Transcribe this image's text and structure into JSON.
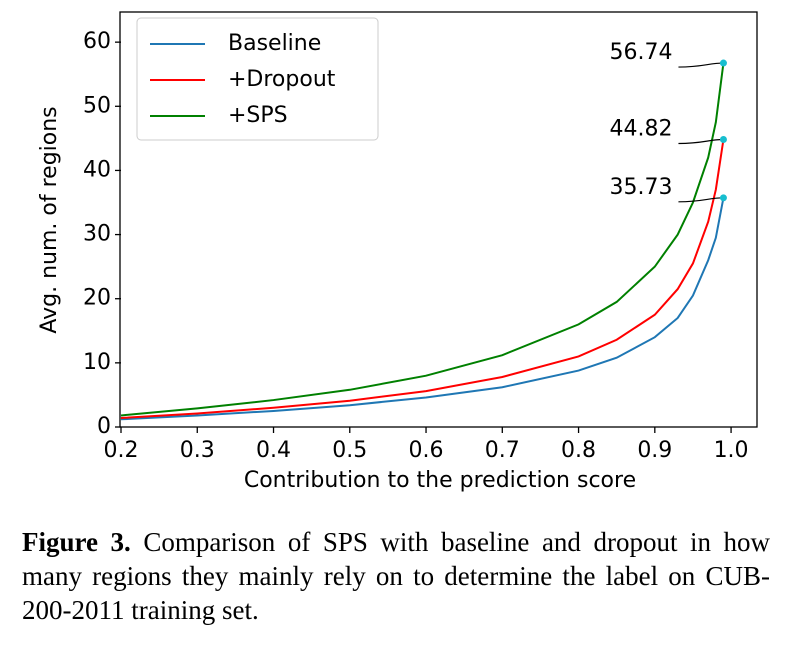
{
  "chart_data": {
    "type": "line",
    "xlabel": "Contribution to the prediction score",
    "ylabel": "Avg. num. of regions",
    "x": [
      0.2,
      0.3,
      0.4,
      0.5,
      0.6,
      0.7,
      0.8,
      0.85,
      0.9,
      0.93,
      0.95,
      0.97,
      0.98,
      0.99
    ],
    "series": [
      {
        "name": "Baseline",
        "color": "#1f77b4",
        "values": [
          1.2,
          1.8,
          2.5,
          3.4,
          4.6,
          6.2,
          8.8,
          10.8,
          14,
          17,
          20.5,
          26,
          29.5,
          35.73
        ]
      },
      {
        "name": "+Dropout",
        "color": "#ff0000",
        "values": [
          1.4,
          2.1,
          3.0,
          4.1,
          5.6,
          7.8,
          11,
          13.6,
          17.5,
          21.5,
          25.5,
          32,
          37,
          44.82
        ]
      },
      {
        "name": "+SPS",
        "color": "#008000",
        "values": [
          1.8,
          2.9,
          4.2,
          5.8,
          8.0,
          11.2,
          16,
          19.5,
          25,
          30,
          35,
          42,
          47.5,
          56.74
        ]
      }
    ],
    "endpoint_color": "#17becf",
    "xlim": [
      0.2,
      1.034
    ],
    "ylim": [
      0,
      64.7
    ],
    "xticks": [
      0.2,
      0.3,
      0.4,
      0.5,
      0.6,
      0.7,
      0.8,
      0.9,
      {
        "value": 1.0,
        "label": "1.0"
      }
    ],
    "yticks": [
      0,
      10,
      20,
      30,
      40,
      50,
      60
    ],
    "legend": "upper left"
  },
  "caption": {
    "label": "Figure 3.",
    "text": "Comparison of SPS with baseline and dropout in how many regions they mainly rely on to determine the label on CUB-200-2011 training set."
  }
}
